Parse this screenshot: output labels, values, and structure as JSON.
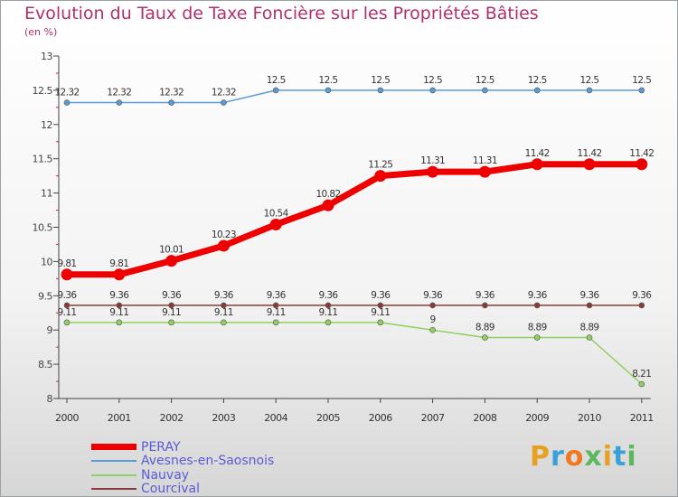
{
  "title": "Evolution du Taux de Taxe Foncière sur les Propriétés Bâties",
  "subtitle": "(en %)",
  "logo": {
    "text": "Proxiti",
    "colors": [
      "#e8a020",
      "#3aa0d8",
      "#f07820",
      "#5cb85c",
      "#e8a020",
      "#3aa0d8",
      "#5cb85c"
    ]
  },
  "chart_data": {
    "type": "line",
    "title": "Evolution du Taux de Taxe Foncière sur les Propriétés Bâties",
    "ylabel": "(en %)",
    "xlabel": "",
    "ylim": [
      8,
      13
    ],
    "yticks": [
      "8",
      "8.5",
      "9",
      "9.5",
      "10",
      "10.5",
      "11",
      "11.5",
      "12",
      "12.5",
      "13"
    ],
    "ytick_values": [
      8,
      8.5,
      9,
      9.5,
      10,
      10.5,
      11,
      11.5,
      12,
      12.5,
      13
    ],
    "categories": [
      "2000",
      "2001",
      "2002",
      "2003",
      "2004",
      "2005",
      "2006",
      "2007",
      "2008",
      "2009",
      "2010",
      "2011"
    ],
    "series": [
      {
        "name": "PERAY",
        "color": "#ee0000",
        "emphasis": "thick",
        "values": [
          9.81,
          9.81,
          10.01,
          10.23,
          10.54,
          10.82,
          11.25,
          11.31,
          11.31,
          11.42,
          11.42,
          11.42
        ],
        "labels": [
          "9.81",
          "9.81",
          "10.01",
          "10.23",
          "10.54",
          "10.82",
          "11.25",
          "11.31",
          "11.31",
          "11.42",
          "11.42",
          "11.42"
        ]
      },
      {
        "name": "Avesnes-en-Saosnois",
        "color": "#5b9bd5",
        "emphasis": "thin",
        "values": [
          12.32,
          12.32,
          12.32,
          12.32,
          12.5,
          12.5,
          12.5,
          12.5,
          12.5,
          12.5,
          12.5,
          12.5
        ],
        "labels": [
          "12.32",
          "12.32",
          "12.32",
          "12.32",
          "12.5",
          "12.5",
          "12.5",
          "12.5",
          "12.5",
          "12.5",
          "12.5",
          "12.5"
        ]
      },
      {
        "name": "Nauvay",
        "color": "#90d060",
        "emphasis": "thin",
        "values": [
          9.11,
          9.11,
          9.11,
          9.11,
          9.11,
          9.11,
          9.11,
          9.0,
          8.89,
          8.89,
          8.89,
          8.21
        ],
        "labels": [
          "9.11",
          "9.11",
          "9.11",
          "9.11",
          "9.11",
          "9.11",
          "9.11",
          "9",
          "8.89",
          "8.89",
          "8.89",
          "8.21"
        ]
      },
      {
        "name": "Courcival",
        "color": "#8b3a3a",
        "emphasis": "thin",
        "values": [
          9.36,
          9.36,
          9.36,
          9.36,
          9.36,
          9.36,
          9.36,
          9.36,
          9.36,
          9.36,
          9.36,
          9.36
        ],
        "labels": [
          "9.36",
          "9.36",
          "9.36",
          "9.36",
          "9.36",
          "9.36",
          "9.36",
          "9.36",
          "9.36",
          "9.36",
          "9.36",
          "9.36"
        ]
      }
    ],
    "legend": [
      "PERAY",
      "Avesnes-en-Saosnois",
      "Nauvay",
      "Courcival"
    ],
    "legend_position": "bottom-left",
    "grid": false
  }
}
